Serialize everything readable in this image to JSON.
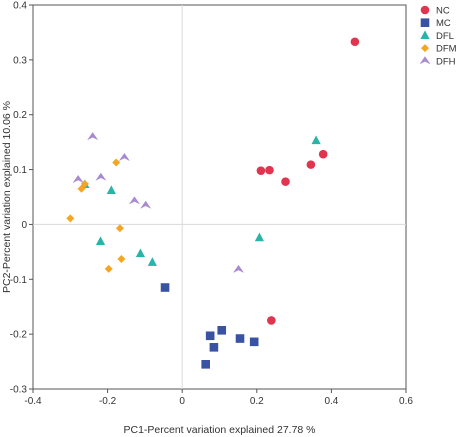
{
  "chart_data": {
    "type": "scatter",
    "title": "",
    "xlabel": "PC1-Percent variation explained 27.78 %",
    "ylabel": "PC2-Percent variation explained 10.06 %",
    "xlim": [
      -0.4,
      0.6
    ],
    "ylim": [
      -0.3,
      0.4
    ],
    "x_ticks": [
      -0.4,
      -0.2,
      0,
      0.2,
      0.4,
      0.6
    ],
    "y_ticks": [
      -0.3,
      -0.2,
      -0.1,
      0,
      0.1,
      0.2,
      0.3,
      0.4
    ],
    "x_tick_labels": [
      "-0.4",
      "-0.2",
      "0",
      "0.2",
      "0.4",
      "0.6"
    ],
    "y_tick_labels": [
      "-0.3",
      "-0.2",
      "-0.1",
      "0",
      "0.1",
      "0.2",
      "0.3",
      "0.4"
    ],
    "grid": false,
    "legend_position": "top-right",
    "series": [
      {
        "name": "NC",
        "marker": "circle",
        "color": "#e0344f",
        "points": [
          {
            "x": 0.463,
            "y": 0.333
          },
          {
            "x": 0.378,
            "y": 0.128
          },
          {
            "x": 0.345,
            "y": 0.109
          },
          {
            "x": 0.277,
            "y": 0.078
          },
          {
            "x": 0.234,
            "y": 0.099
          },
          {
            "x": 0.211,
            "y": 0.098
          },
          {
            "x": 0.239,
            "y": -0.175
          }
        ]
      },
      {
        "name": "MC",
        "marker": "square",
        "color": "#3a52a4",
        "points": [
          {
            "x": -0.046,
            "y": -0.115
          },
          {
            "x": 0.106,
            "y": -0.193
          },
          {
            "x": 0.075,
            "y": -0.203
          },
          {
            "x": 0.155,
            "y": -0.208
          },
          {
            "x": 0.193,
            "y": -0.214
          },
          {
            "x": 0.085,
            "y": -0.224
          },
          {
            "x": 0.063,
            "y": -0.255
          }
        ]
      },
      {
        "name": "DFL",
        "marker": "triangle",
        "color": "#2ab3a9",
        "points": [
          {
            "x": 0.359,
            "y": 0.153
          },
          {
            "x": -0.261,
            "y": 0.073
          },
          {
            "x": -0.19,
            "y": 0.062
          },
          {
            "x": -0.219,
            "y": -0.031
          },
          {
            "x": 0.207,
            "y": -0.024
          },
          {
            "x": -0.112,
            "y": -0.053
          },
          {
            "x": -0.08,
            "y": -0.069
          }
        ]
      },
      {
        "name": "DFM",
        "marker": "diamond",
        "color": "#f4a622",
        "points": [
          {
            "x": -0.177,
            "y": 0.113
          },
          {
            "x": -0.261,
            "y": 0.074
          },
          {
            "x": -0.27,
            "y": 0.065
          },
          {
            "x": -0.3,
            "y": 0.011
          },
          {
            "x": -0.167,
            "y": -0.007
          },
          {
            "x": -0.163,
            "y": -0.063
          },
          {
            "x": -0.197,
            "y": -0.081
          }
        ]
      },
      {
        "name": "DFH",
        "marker": "chevron",
        "color": "#a88ad0",
        "points": [
          {
            "x": -0.24,
            "y": 0.16
          },
          {
            "x": -0.155,
            "y": 0.122
          },
          {
            "x": -0.218,
            "y": 0.086
          },
          {
            "x": -0.279,
            "y": 0.082
          },
          {
            "x": -0.128,
            "y": 0.043
          },
          {
            "x": -0.098,
            "y": 0.035
          },
          {
            "x": 0.151,
            "y": -0.082
          }
        ]
      }
    ]
  }
}
